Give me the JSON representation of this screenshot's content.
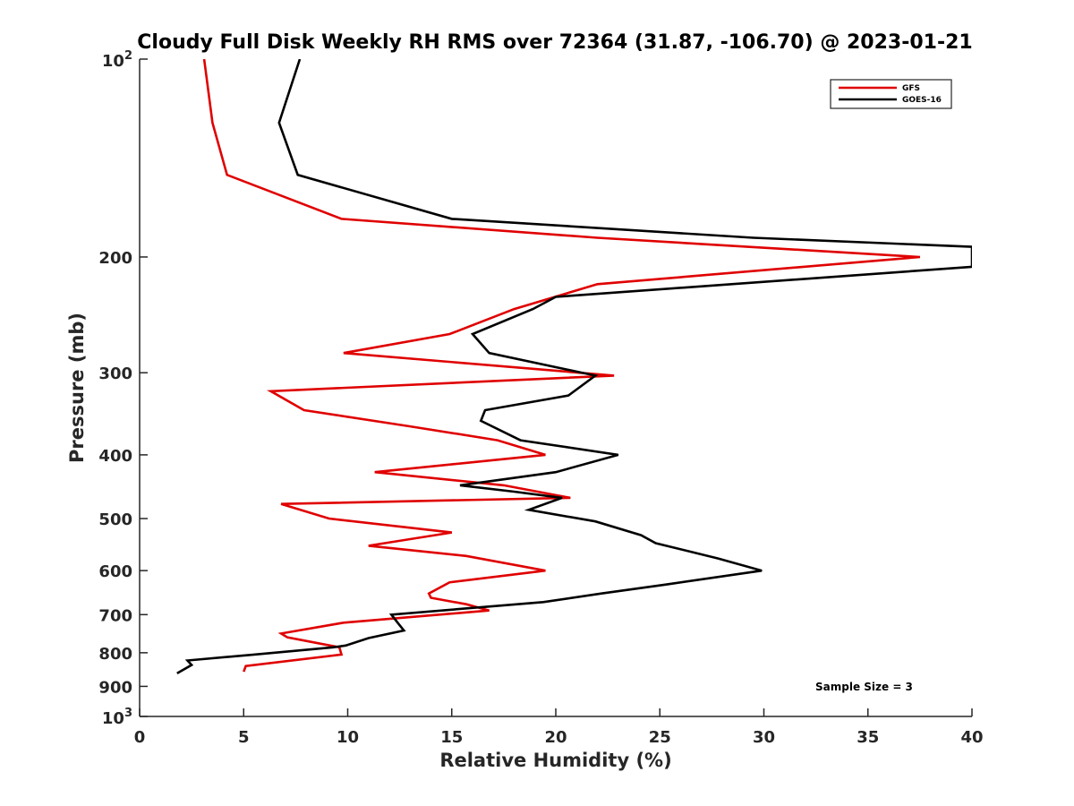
{
  "chart_data": {
    "type": "line",
    "title": "Cloudy Full Disk Weekly RH RMS over 72364 (31.87, -106.70) @ 2023-01-21",
    "xlabel": "Relative Humidity (%)",
    "ylabel": "Pressure (mb)",
    "xlim": [
      0,
      40
    ],
    "ylim": [
      100,
      1000
    ],
    "y_scale": "log",
    "y_reversed": true,
    "xticks": [
      0,
      5,
      10,
      15,
      20,
      25,
      30,
      35,
      40
    ],
    "x_tick_labels": [
      "0",
      "5",
      "10",
      "15",
      "20",
      "25",
      "30",
      "35",
      "40"
    ],
    "yticks": [
      {
        "value": 100,
        "label": "10",
        "sup": "2"
      },
      {
        "value": 200,
        "label": "200",
        "sup": ""
      },
      {
        "value": 300,
        "label": "300",
        "sup": ""
      },
      {
        "value": 400,
        "label": "400",
        "sup": ""
      },
      {
        "value": 500,
        "label": "500",
        "sup": ""
      },
      {
        "value": 600,
        "label": "600",
        "sup": ""
      },
      {
        "value": 700,
        "label": "700",
        "sup": ""
      },
      {
        "value": 800,
        "label": "800",
        "sup": ""
      },
      {
        "value": 900,
        "label": "900",
        "sup": ""
      },
      {
        "value": 1000,
        "label": "10",
        "sup": "3"
      }
    ],
    "grid": false,
    "legend_position": "top-right",
    "annotation": "Sample Size = 3",
    "series": [
      {
        "name": "GFS",
        "color": "#e00000",
        "points": [
          [
            3.1,
            100
          ],
          [
            3.5,
            125
          ],
          [
            4.2,
            150
          ],
          [
            9.7,
            175
          ],
          [
            22,
            187
          ],
          [
            37.5,
            200
          ],
          [
            22,
            220
          ],
          [
            18,
            240
          ],
          [
            14.9,
            262
          ],
          [
            9.8,
            280
          ],
          [
            22.8,
            303
          ],
          [
            6.3,
            320
          ],
          [
            7.9,
            342
          ],
          [
            13,
            362
          ],
          [
            17.2,
            380
          ],
          [
            19.5,
            400
          ],
          [
            11.3,
            425
          ],
          [
            17.5,
            445
          ],
          [
            20.7,
            465
          ],
          [
            6.8,
            475
          ],
          [
            9.1,
            500
          ],
          [
            15,
            525
          ],
          [
            11,
            550
          ],
          [
            15.7,
            570
          ],
          [
            19.5,
            600
          ],
          [
            14.9,
            625
          ],
          [
            13.9,
            650
          ],
          [
            14.0,
            660
          ],
          [
            15.7,
            675
          ],
          [
            16.8,
            690
          ],
          [
            9.8,
            720
          ],
          [
            6.8,
            748
          ],
          [
            7.1,
            758
          ],
          [
            9.6,
            785
          ],
          [
            9.7,
            805
          ],
          [
            5.1,
            838
          ],
          [
            5.0,
            855
          ]
        ]
      },
      {
        "name": "GOES-16",
        "color": "#000000",
        "points": [
          [
            7.7,
            100
          ],
          [
            6.7,
            125
          ],
          [
            7.6,
            150
          ],
          [
            15,
            175
          ],
          [
            29.5,
            187
          ],
          [
            40,
            193
          ],
          [
            40,
            207
          ],
          [
            20,
            230
          ],
          [
            18.9,
            240
          ],
          [
            16,
            262
          ],
          [
            16.8,
            280
          ],
          [
            21.9,
            303
          ],
          [
            20.6,
            325
          ],
          [
            16.6,
            342
          ],
          [
            16.4,
            355
          ],
          [
            18.3,
            380
          ],
          [
            23,
            400
          ],
          [
            20,
            425
          ],
          [
            15.4,
            445
          ],
          [
            18,
            455
          ],
          [
            20.3,
            465
          ],
          [
            18.7,
            485
          ],
          [
            21.9,
            505
          ],
          [
            24.1,
            530
          ],
          [
            24.8,
            545
          ],
          [
            27.8,
            575
          ],
          [
            29.9,
            600
          ],
          [
            25.3,
            630
          ],
          [
            22.2,
            650
          ],
          [
            19.4,
            670
          ],
          [
            12.1,
            700
          ],
          [
            12.4,
            720
          ],
          [
            12.7,
            740
          ],
          [
            11,
            760
          ],
          [
            9.9,
            780
          ],
          [
            9.3,
            785
          ],
          [
            5.5,
            805
          ],
          [
            2.3,
            822
          ],
          [
            2.5,
            835
          ],
          [
            1.8,
            860
          ]
        ]
      }
    ]
  }
}
